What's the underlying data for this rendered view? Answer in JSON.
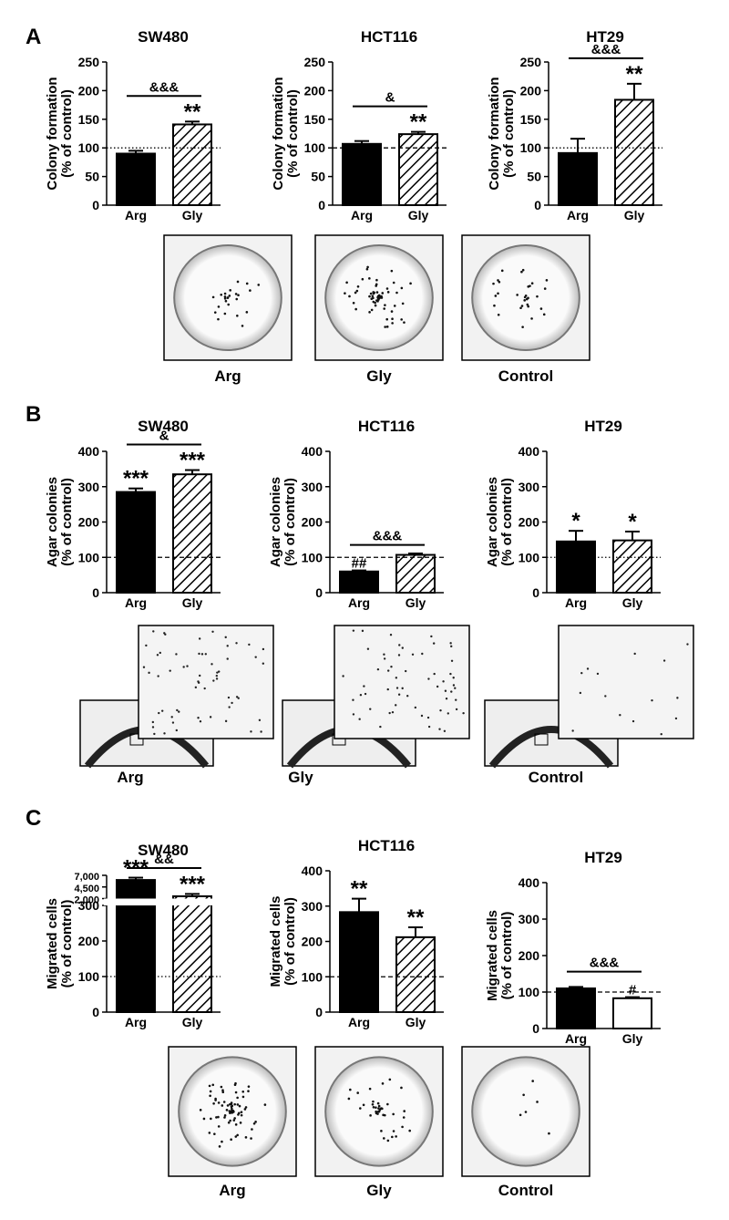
{
  "panels": [
    {
      "label": "A",
      "image_labels": [
        "Arg",
        "Gly",
        "Control"
      ]
    },
    {
      "label": "B",
      "image_labels": [
        "Arg",
        "Gly",
        "Control"
      ]
    },
    {
      "label": "C",
      "image_labels": [
        "Arg",
        "Gly",
        "Control"
      ]
    }
  ],
  "chart_data": [
    {
      "type": "bar",
      "title": "SW480",
      "ylabel": [
        "Colony formation",
        "(% of control)"
      ],
      "categories": [
        "Arg",
        "Gly"
      ],
      "values": [
        90,
        141
      ],
      "errors": [
        5,
        5
      ],
      "bar_styles": [
        "solid",
        "hatched"
      ],
      "ylim": [
        0,
        250
      ],
      "yticks": [
        0,
        50,
        100,
        150,
        200,
        250
      ],
      "ref_line": 100,
      "ref_style": "dotted",
      "bar_labels": [
        null,
        "**"
      ],
      "bracket": "&&&"
    },
    {
      "type": "bar",
      "title": "HCT116",
      "ylabel": [
        "Colony formation",
        "(% of control)"
      ],
      "categories": [
        "Arg",
        "Gly"
      ],
      "values": [
        107,
        124
      ],
      "errors": [
        5,
        4
      ],
      "bar_styles": [
        "solid",
        "hatched"
      ],
      "ylim": [
        0,
        250
      ],
      "yticks": [
        0,
        50,
        100,
        150,
        200,
        250
      ],
      "ref_line": 100,
      "ref_style": "dashed",
      "bar_labels": [
        null,
        "**"
      ],
      "bracket": "&"
    },
    {
      "type": "bar",
      "title": "HT29",
      "ylabel": [
        "Colony formation",
        "(% of control)"
      ],
      "categories": [
        "Arg",
        "Gly"
      ],
      "values": [
        91,
        184
      ],
      "errors": [
        25,
        28
      ],
      "bar_styles": [
        "solid",
        "hatched"
      ],
      "ylim": [
        0,
        250
      ],
      "yticks": [
        0,
        50,
        100,
        150,
        200,
        250
      ],
      "ref_line": 100,
      "ref_style": "dotted",
      "bar_labels": [
        null,
        "**"
      ],
      "bracket": "&&&"
    },
    {
      "type": "bar",
      "title": "SW480",
      "ylabel": [
        "Agar colonies",
        "(% of control)"
      ],
      "categories": [
        "Arg",
        "Gly"
      ],
      "values": [
        285,
        335
      ],
      "errors": [
        10,
        12
      ],
      "bar_styles": [
        "solid",
        "hatched"
      ],
      "ylim": [
        0,
        400
      ],
      "yticks": [
        0,
        100,
        200,
        300,
        400
      ],
      "ref_line": 100,
      "ref_style": "dashed",
      "bar_labels": [
        "***",
        "***"
      ],
      "bracket": "&"
    },
    {
      "type": "bar",
      "title": "HCT116",
      "ylabel": [
        "Agar colonies",
        "(% of control)"
      ],
      "categories": [
        "Arg",
        "Gly"
      ],
      "values": [
        60,
        107
      ],
      "errors": [
        3,
        4
      ],
      "bar_styles": [
        "solid",
        "hatched"
      ],
      "ylim": [
        0,
        400
      ],
      "yticks": [
        0,
        100,
        200,
        300,
        400
      ],
      "ref_line": 100,
      "ref_style": "dashed",
      "bar_labels": [
        "##",
        null
      ],
      "bracket": "&&&"
    },
    {
      "type": "bar",
      "title": "HT29",
      "ylabel": [
        "Agar colonies",
        "(% of control)"
      ],
      "categories": [
        "Arg",
        "Gly"
      ],
      "values": [
        145,
        148
      ],
      "errors": [
        30,
        25
      ],
      "bar_styles": [
        "solid",
        "hatched"
      ],
      "ylim": [
        0,
        400
      ],
      "yticks": [
        0,
        100,
        200,
        300,
        400
      ],
      "ref_line": 100,
      "ref_style": "dotted",
      "bar_labels": [
        "*",
        "*"
      ]
    },
    {
      "type": "bar",
      "title": "SW480",
      "ylabel": [
        "Migrated cells",
        "(% of control)"
      ],
      "categories": [
        "Arg",
        "Gly"
      ],
      "values": [
        6000,
        2500
      ],
      "errors": [
        500,
        500
      ],
      "bar_styles": [
        "solid",
        "hatched"
      ],
      "ylim": [
        0,
        7000
      ],
      "ybreak": [
        300,
        2000
      ],
      "yticks": [
        0,
        100,
        200,
        300,
        {
          "value": 2000,
          "label": "2,000"
        },
        {
          "value": 4500,
          "label": "4,500"
        },
        {
          "value": 7000,
          "label": "7,000"
        }
      ],
      "ref_line": 100,
      "ref_style": "dotted",
      "bar_labels": [
        "***",
        "***"
      ],
      "bracket": "&&"
    },
    {
      "type": "bar",
      "title": "HCT116",
      "ylabel": [
        "Migrated cells",
        "(% of control)"
      ],
      "categories": [
        "Arg",
        "Gly"
      ],
      "values": [
        283,
        212
      ],
      "errors": [
        38,
        28
      ],
      "bar_styles": [
        "solid",
        "hatched"
      ],
      "ylim": [
        0,
        400
      ],
      "yticks": [
        0,
        100,
        200,
        300,
        400
      ],
      "ref_line": 100,
      "ref_style": "dashed",
      "bar_labels": [
        "**",
        "**"
      ]
    },
    {
      "type": "bar",
      "title": "HT29",
      "ylabel": [
        "Migrated cells",
        "(% of control)"
      ],
      "categories": [
        "Arg",
        "Gly"
      ],
      "values": [
        110,
        83
      ],
      "errors": [
        4,
        3
      ],
      "bar_styles": [
        "solid",
        "open"
      ],
      "ylim": [
        0,
        400
      ],
      "yticks": [
        0,
        100,
        200,
        300,
        400
      ],
      "ref_line": 100,
      "ref_style": "dashed",
      "bar_labels": [
        null,
        "#"
      ],
      "bracket": "&&&"
    }
  ]
}
